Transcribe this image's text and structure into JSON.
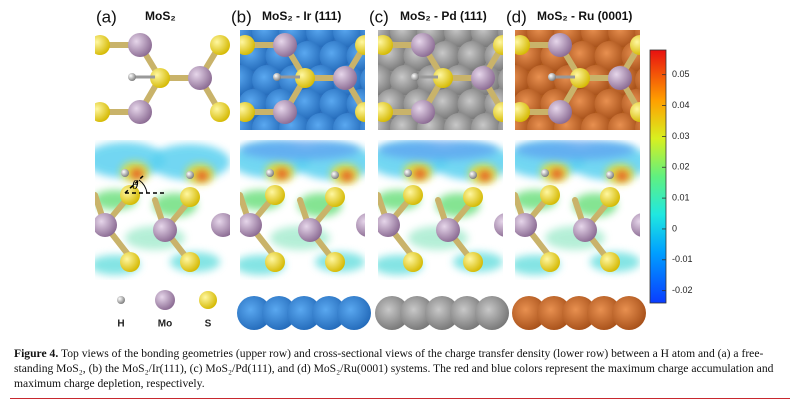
{
  "panels": [
    {
      "label": "(a)",
      "title": "MoS₂"
    },
    {
      "label": "(b)",
      "title": "MoS₂ - Ir (111)"
    },
    {
      "label": "(c)",
      "title": "MoS₂ - Pd (111)"
    },
    {
      "label": "(d)",
      "title": "MoS₂ - Ru (0001)"
    }
  ],
  "angle_label": "θ",
  "legend": [
    "H",
    "Mo",
    "S"
  ],
  "colorbar": {
    "ylim": [
      -0.024,
      0.058
    ],
    "yticks": [
      0.05,
      0.04,
      0.03,
      0.02,
      0.01,
      0,
      -0.01,
      -0.02
    ]
  },
  "caption": {
    "label": "Figure 4.",
    "text": "Top views of the bonding geometries (upper row) and cross-sectional views of the charge transfer density (lower row) between a H atom and (a) a free-standing MoS₂, (b) the MoS₂/Ir(111), (c) MoS₂/Pd(111), and (d) MoS₂/Ru(0001) systems. The red and blue colors represent the maximum charge accumulation and maximum charge depletion, respectively."
  }
}
